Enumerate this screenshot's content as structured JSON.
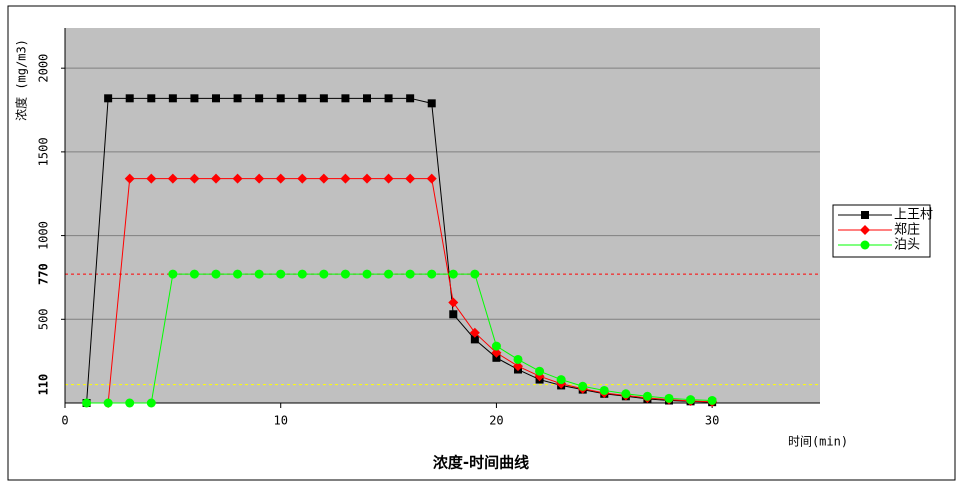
{
  "chart_data": {
    "type": "line",
    "title": "浓度-时间曲线",
    "x_label": "时间(min)",
    "y_label": "浓度 (mg/m3)",
    "xlim": [
      0,
      35
    ],
    "xticks": [
      0,
      10,
      20,
      30
    ],
    "ylim": [
      0,
      2240
    ],
    "yticks": [
      500,
      1000,
      1500,
      2000
    ],
    "grid": true,
    "ref_lines": [
      {
        "value": 770,
        "color": "#ff0000"
      },
      {
        "value": 110,
        "color": "#ffff00"
      }
    ],
    "legend": "right",
    "series": [
      {
        "name": "上王村",
        "color": "#000000",
        "marker": "square",
        "x": [
          1,
          2,
          3,
          4,
          5,
          6,
          7,
          8,
          9,
          10,
          11,
          12,
          13,
          14,
          15,
          16,
          17,
          18,
          19,
          20,
          21,
          22,
          23,
          24,
          25,
          26,
          27,
          28,
          29,
          30
        ],
        "values": [
          0,
          1820,
          1820,
          1820,
          1820,
          1820,
          1820,
          1820,
          1820,
          1820,
          1820,
          1820,
          1820,
          1820,
          1820,
          1820,
          1790,
          530,
          380,
          270,
          200,
          140,
          105,
          80,
          55,
          40,
          25,
          15,
          10,
          5
        ]
      },
      {
        "name": "郑庄",
        "color": "#ff0000",
        "marker": "diamond",
        "x": [
          2,
          3,
          4,
          5,
          6,
          7,
          8,
          9,
          10,
          11,
          12,
          13,
          14,
          15,
          16,
          17,
          18,
          19,
          20,
          21,
          22,
          23,
          24,
          25,
          26,
          27,
          28,
          29,
          30
        ],
        "values": [
          0,
          1340,
          1340,
          1340,
          1340,
          1340,
          1340,
          1340,
          1340,
          1340,
          1340,
          1340,
          1340,
          1340,
          1340,
          1340,
          600,
          420,
          300,
          220,
          160,
          115,
          85,
          60,
          45,
          30,
          20,
          12,
          7
        ]
      },
      {
        "name": "泊头",
        "color": "#00ff00",
        "marker": "circle",
        "x": [
          1,
          2,
          3,
          4,
          5,
          6,
          7,
          8,
          9,
          10,
          11,
          12,
          13,
          14,
          15,
          16,
          17,
          18,
          19,
          20,
          21,
          22,
          23,
          24,
          25,
          26,
          27,
          28,
          29,
          30
        ],
        "values": [
          0,
          0,
          0,
          0,
          770,
          770,
          770,
          770,
          770,
          770,
          770,
          770,
          770,
          770,
          770,
          770,
          770,
          770,
          770,
          340,
          260,
          190,
          140,
          100,
          75,
          55,
          40,
          28,
          20,
          15
        ]
      }
    ]
  }
}
